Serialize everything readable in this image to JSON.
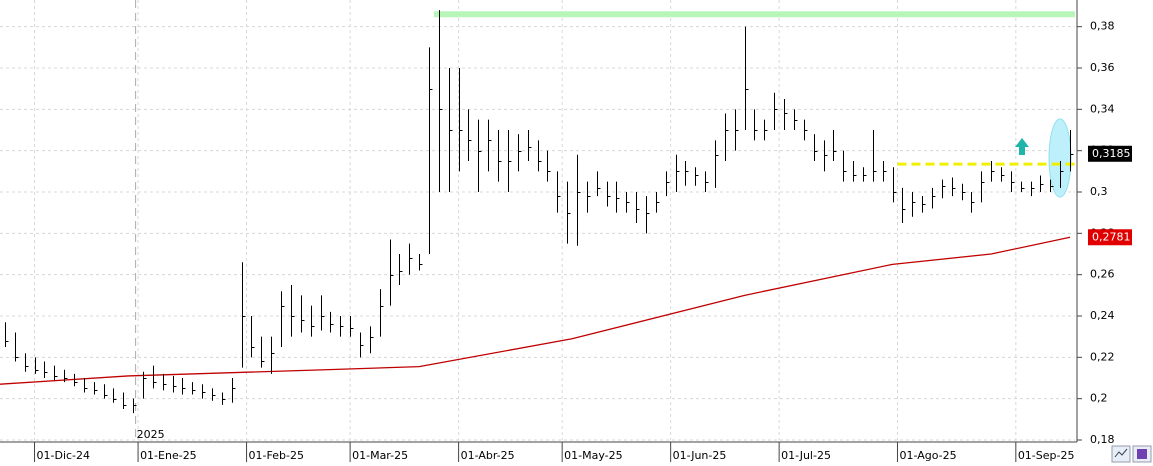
{
  "chart_data": {
    "type": "ohlc",
    "x": [
      -5,
      -3,
      -1,
      1,
      3,
      5,
      7,
      9,
      11,
      13,
      15,
      17,
      19,
      21,
      23,
      25,
      27,
      29,
      31,
      33,
      35,
      37,
      39,
      41,
      43,
      45,
      47,
      49,
      51,
      53,
      55,
      57,
      59,
      61,
      63,
      65,
      67,
      69,
      71,
      73,
      75,
      77,
      79,
      81,
      83,
      85,
      87,
      89,
      91,
      93,
      95,
      97,
      99,
      101,
      103,
      105,
      107,
      109,
      111,
      113,
      115,
      117,
      119,
      121,
      123,
      125,
      127,
      129,
      131,
      133,
      135,
      137,
      139,
      141,
      143,
      145,
      147,
      149,
      151,
      153,
      155,
      157,
      159,
      161,
      163,
      165,
      167,
      169,
      171,
      173,
      175,
      177,
      179,
      181,
      183,
      185,
      187,
      189,
      191,
      193,
      195,
      197,
      199,
      201,
      203,
      205,
      207,
      209,
      211
    ],
    "high": [
      0.237,
      0.232,
      0.222,
      0.22,
      0.218,
      0.216,
      0.214,
      0.212,
      0.21,
      0.208,
      0.207,
      0.205,
      0.203,
      0.2,
      0.213,
      0.216,
      0.212,
      0.211,
      0.21,
      0.208,
      0.207,
      0.205,
      0.203,
      0.21,
      0.266,
      0.24,
      0.23,
      0.23,
      0.252,
      0.255,
      0.25,
      0.245,
      0.25,
      0.242,
      0.24,
      0.24,
      0.232,
      0.235,
      0.253,
      0.277,
      0.27,
      0.275,
      0.27,
      0.37,
      0.388,
      0.36,
      0.36,
      0.34,
      0.335,
      0.335,
      0.33,
      0.33,
      0.328,
      0.33,
      0.325,
      0.32,
      0.31,
      0.305,
      0.318,
      0.305,
      0.31,
      0.305,
      0.305,
      0.3,
      0.3,
      0.298,
      0.3,
      0.31,
      0.318,
      0.315,
      0.312,
      0.31,
      0.325,
      0.338,
      0.34,
      0.38,
      0.34,
      0.335,
      0.348,
      0.345,
      0.34,
      0.335,
      0.328,
      0.325,
      0.33,
      0.32,
      0.315,
      0.312,
      0.33,
      0.315,
      0.312,
      0.302,
      0.3,
      0.298,
      0.302,
      0.306,
      0.307,
      0.304,
      0.3,
      0.31,
      0.315,
      0.312,
      0.31,
      0.305,
      0.305,
      0.308,
      0.306,
      0.315,
      0.33
    ],
    "low": [
      0.225,
      0.218,
      0.213,
      0.212,
      0.21,
      0.209,
      0.208,
      0.206,
      0.203,
      0.202,
      0.2,
      0.198,
      0.195,
      0.193,
      0.2,
      0.205,
      0.204,
      0.203,
      0.202,
      0.202,
      0.2,
      0.199,
      0.197,
      0.198,
      0.215,
      0.22,
      0.215,
      0.212,
      0.225,
      0.23,
      0.232,
      0.23,
      0.233,
      0.232,
      0.23,
      0.23,
      0.22,
      0.222,
      0.23,
      0.245,
      0.255,
      0.26,
      0.262,
      0.27,
      0.3,
      0.3,
      0.31,
      0.315,
      0.3,
      0.31,
      0.305,
      0.3,
      0.31,
      0.315,
      0.31,
      0.305,
      0.29,
      0.275,
      0.274,
      0.29,
      0.298,
      0.293,
      0.29,
      0.29,
      0.285,
      0.28,
      0.29,
      0.298,
      0.3,
      0.303,
      0.303,
      0.3,
      0.302,
      0.315,
      0.32,
      0.33,
      0.325,
      0.325,
      0.33,
      0.33,
      0.33,
      0.325,
      0.315,
      0.31,
      0.315,
      0.305,
      0.305,
      0.305,
      0.305,
      0.305,
      0.295,
      0.285,
      0.288,
      0.29,
      0.292,
      0.297,
      0.298,
      0.296,
      0.29,
      0.295,
      0.305,
      0.305,
      0.3,
      0.3,
      0.298,
      0.3,
      0.3,
      0.302,
      0.31
    ],
    "close": [
      0.228,
      0.22,
      0.216,
      0.214,
      0.213,
      0.211,
      0.21,
      0.208,
      0.205,
      0.204,
      0.202,
      0.2,
      0.197,
      0.197,
      0.21,
      0.208,
      0.207,
      0.206,
      0.205,
      0.204,
      0.203,
      0.202,
      0.2,
      0.205,
      0.24,
      0.225,
      0.218,
      0.222,
      0.245,
      0.24,
      0.238,
      0.235,
      0.24,
      0.236,
      0.235,
      0.234,
      0.226,
      0.23,
      0.245,
      0.26,
      0.262,
      0.268,
      0.265,
      0.35,
      0.34,
      0.33,
      0.33,
      0.325,
      0.32,
      0.325,
      0.315,
      0.315,
      0.32,
      0.322,
      0.315,
      0.31,
      0.298,
      0.29,
      0.3,
      0.298,
      0.302,
      0.298,
      0.297,
      0.295,
      0.292,
      0.29,
      0.295,
      0.305,
      0.31,
      0.31,
      0.308,
      0.305,
      0.318,
      0.33,
      0.33,
      0.35,
      0.33,
      0.33,
      0.34,
      0.338,
      0.335,
      0.33,
      0.32,
      0.318,
      0.32,
      0.31,
      0.308,
      0.308,
      0.31,
      0.31,
      0.3,
      0.292,
      0.295,
      0.294,
      0.298,
      0.303,
      0.302,
      0.3,
      0.295,
      0.305,
      0.31,
      0.308,
      0.305,
      0.302,
      0.302,
      0.304,
      0.303,
      0.31,
      0.3185
    ],
    "color": "#000000",
    "moving_average": {
      "color": "#c00000",
      "x": [
        -6,
        20,
        60,
        79,
        110,
        145,
        175,
        195,
        211
      ],
      "values": [
        0.207,
        0.211,
        0.214,
        0.2155,
        0.229,
        0.25,
        0.265,
        0.27,
        0.2781
      ]
    },
    "price_labels": [
      {
        "value": 0.3185,
        "label": "0,3185",
        "color": "#000000"
      },
      {
        "value": 0.2781,
        "label": "0,2781",
        "color": "#e00000"
      }
    ],
    "levels": [
      {
        "value": 0.386,
        "x": [
          82,
          212
        ],
        "color": "#b8f5b8"
      },
      {
        "value": 0.3135,
        "x": [
          176,
          212
        ],
        "color": "#f0f000"
      }
    ],
    "year_marker": {
      "value": 21.5,
      "label": "2025"
    },
    "xlim": [
      -6,
      212
    ],
    "ylim": [
      0.18,
      0.39
    ],
    "xticks": [
      {
        "value": 1,
        "label": "01-Dic-24"
      },
      {
        "value": 22,
        "label": "01-Ene-25"
      },
      {
        "value": 44,
        "label": "01-Feb-25"
      },
      {
        "value": 65,
        "label": "01-Mar-25"
      },
      {
        "value": 87,
        "label": "01-Abr-25"
      },
      {
        "value": 108,
        "label": "01-May-25"
      },
      {
        "value": 130,
        "label": "01-Jun-25"
      },
      {
        "value": 152,
        "label": "01-Jul-25"
      },
      {
        "value": 176,
        "label": "01-Ago-25"
      },
      {
        "value": 200,
        "label": "01-Sep-25"
      }
    ],
    "yticks": [
      {
        "value": 0.18,
        "label": "0,18"
      },
      {
        "value": 0.2,
        "label": "0,2"
      },
      {
        "value": 0.22,
        "label": "0,22"
      },
      {
        "value": 0.24,
        "label": "0,24"
      },
      {
        "value": 0.26,
        "label": "0,26"
      },
      {
        "value": 0.28,
        "label": "0,28"
      },
      {
        "value": 0.3,
        "label": "0,3"
      },
      {
        "value": 0.32,
        "label": "0,32"
      },
      {
        "value": 0.34,
        "label": "0,34"
      },
      {
        "value": 0.36,
        "label": "0,36"
      },
      {
        "value": 0.38,
        "label": "0,38"
      }
    ],
    "grid": true
  }
}
